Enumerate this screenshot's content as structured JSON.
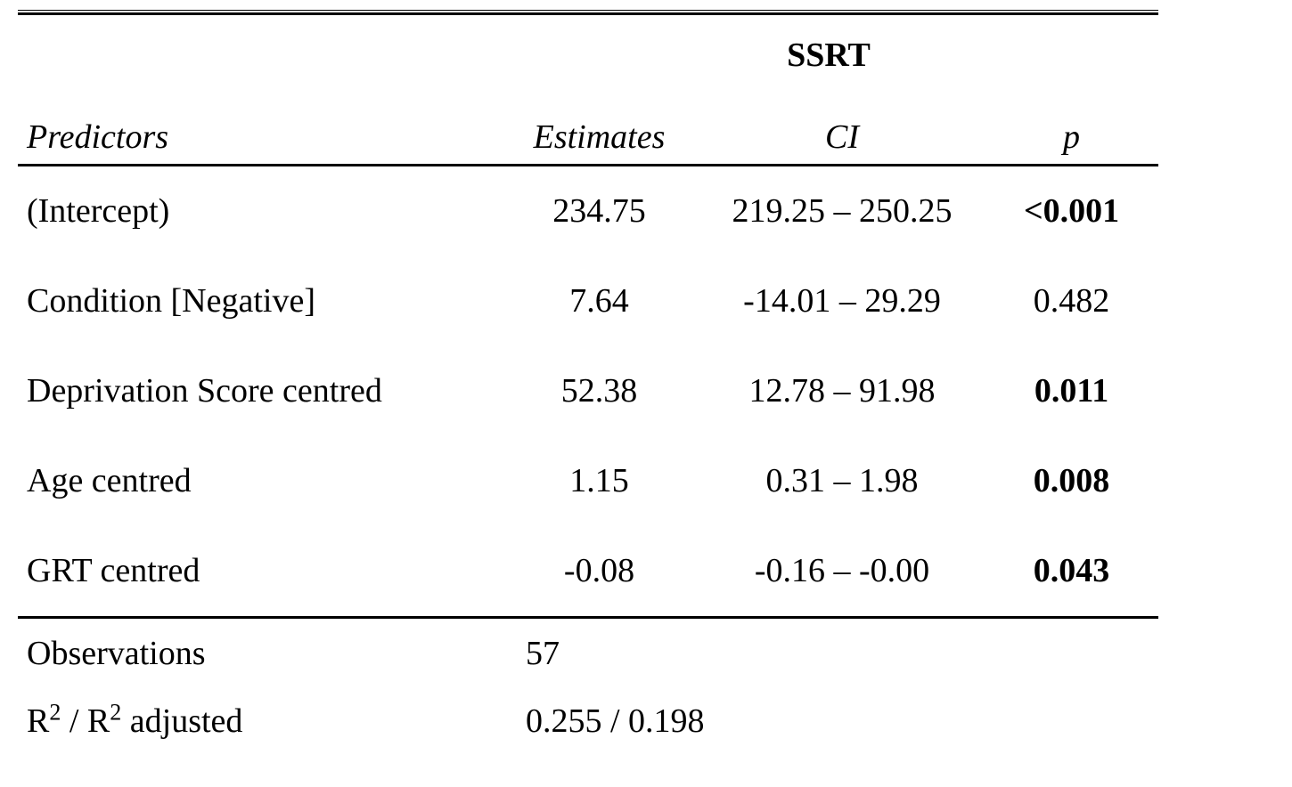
{
  "colors": {
    "text": "#000000",
    "background": "#ffffff",
    "rule": "#000000"
  },
  "table": {
    "dv_header": "SSRT",
    "columns": {
      "predictors": "Predictors",
      "estimates": "Estimates",
      "ci": "CI",
      "p": "p"
    },
    "rows": [
      {
        "predictor": "(Intercept)",
        "estimate": "234.75",
        "ci": "219.25 – 250.25",
        "p": "<0.001",
        "p_significant": true
      },
      {
        "predictor": "Condition [Negative]",
        "estimate": "7.64",
        "ci": "-14.01 – 29.29",
        "p": "0.482",
        "p_significant": false
      },
      {
        "predictor": "Deprivation Score centred",
        "estimate": "52.38",
        "ci": "12.78 – 91.98",
        "p": "0.011",
        "p_significant": true
      },
      {
        "predictor": "Age centred",
        "estimate": "1.15",
        "ci": "0.31 – 1.98",
        "p": "0.008",
        "p_significant": true
      },
      {
        "predictor": "GRT centred",
        "estimate": "-0.08",
        "ci": "-0.16 – -0.00",
        "p": "0.043",
        "p_significant": true
      }
    ],
    "summary": {
      "observations_label": "Observations",
      "observations_value": "57",
      "r2_label_parts": {
        "base1": "R",
        "sup1": "2",
        "mid": " / R",
        "sup2": "2",
        "suffix": " adjusted"
      },
      "r2_value": "0.255 / 0.198"
    }
  }
}
